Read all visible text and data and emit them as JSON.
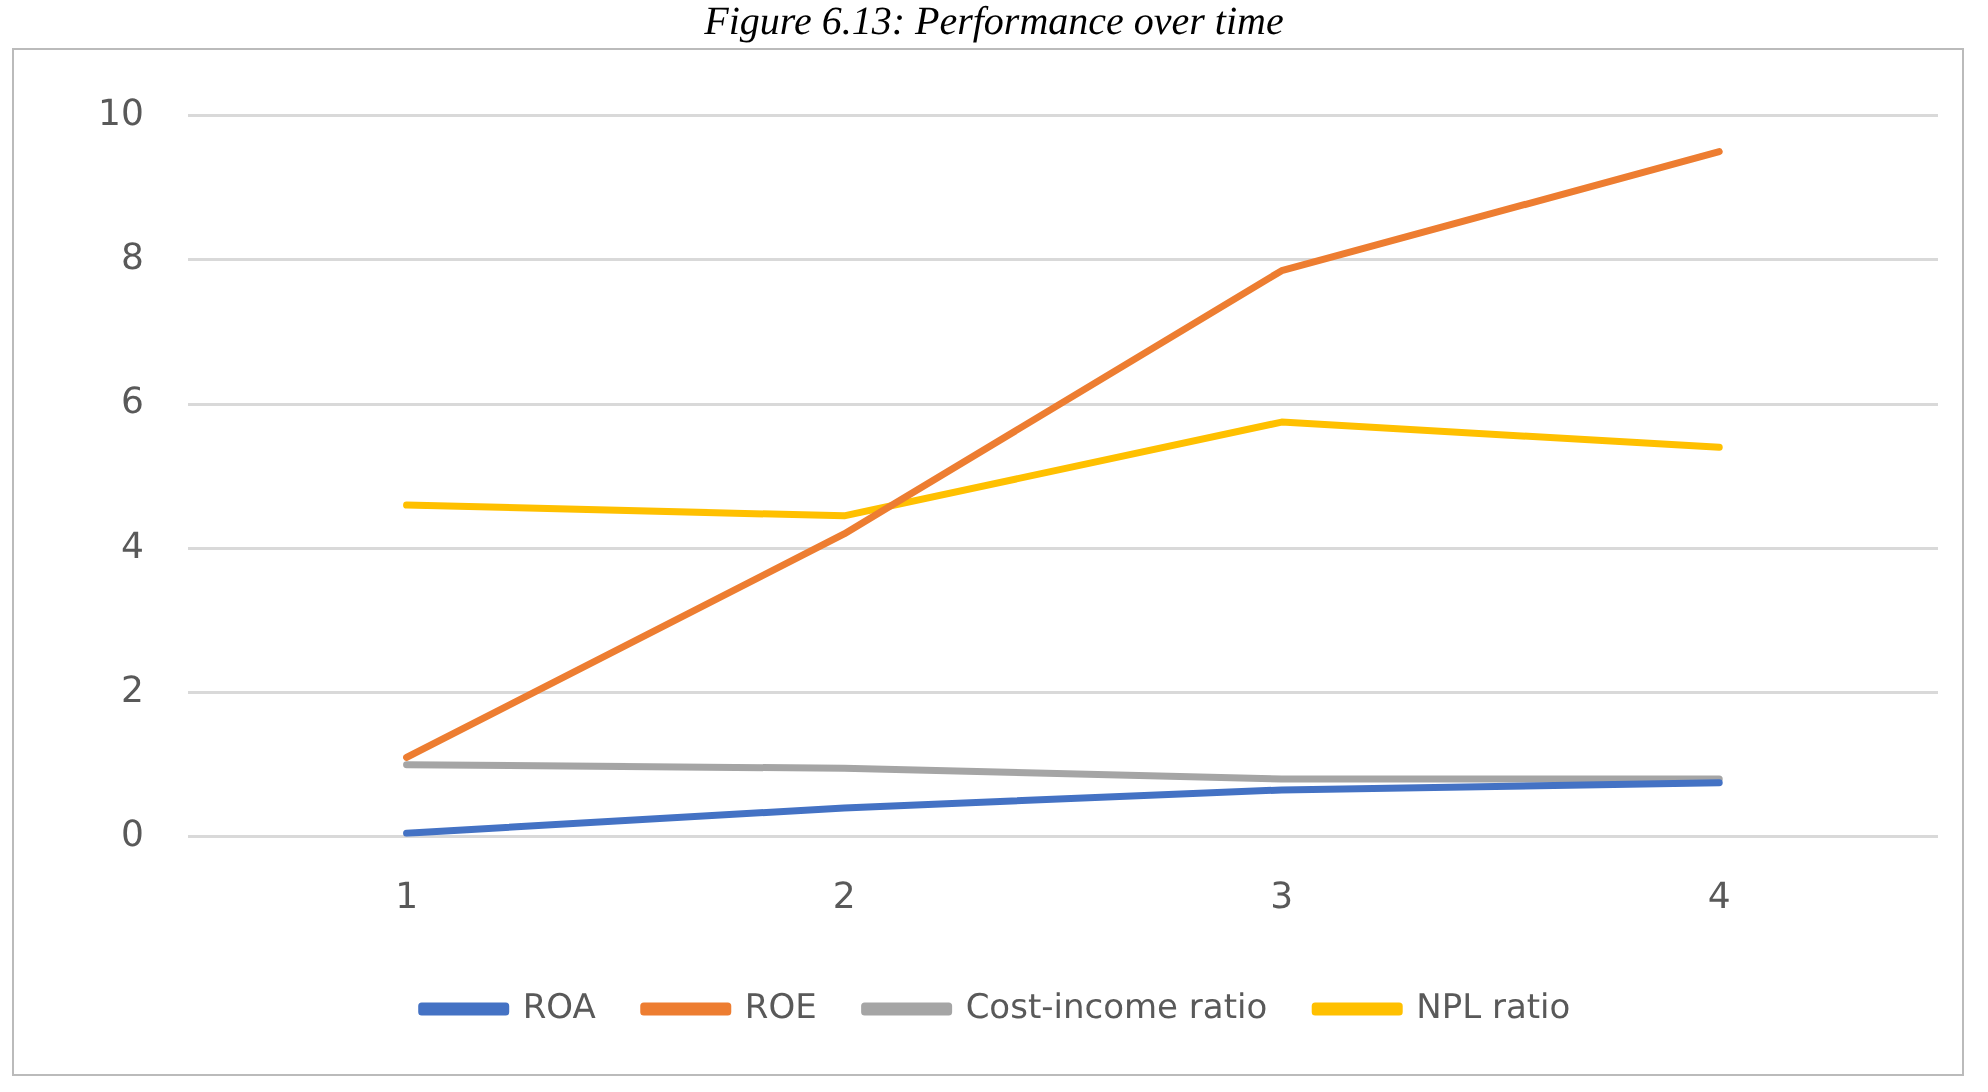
{
  "chart_data": {
    "type": "line",
    "title": "Figure 6.13: Performance over time",
    "categories": [
      "1",
      "2",
      "3",
      "4"
    ],
    "series": [
      {
        "name": "ROA",
        "color": "#4472c4",
        "values": [
          0.05,
          0.4,
          0.65,
          0.75
        ]
      },
      {
        "name": "ROE",
        "color": "#ed7d31",
        "values": [
          1.1,
          4.2,
          7.85,
          9.5
        ]
      },
      {
        "name": "Cost-income ratio",
        "color": "#a5a5a5",
        "values": [
          1.0,
          0.95,
          0.8,
          0.8
        ]
      },
      {
        "name": "NPL ratio",
        "color": "#ffc000",
        "values": [
          4.6,
          4.45,
          5.75,
          5.4
        ]
      }
    ],
    "ylim": [
      0,
      10
    ],
    "yticks": [
      0,
      2,
      4,
      6,
      8,
      10
    ],
    "grid": "y",
    "legend": "bottom",
    "marker": "none",
    "line_style": "solid"
  }
}
